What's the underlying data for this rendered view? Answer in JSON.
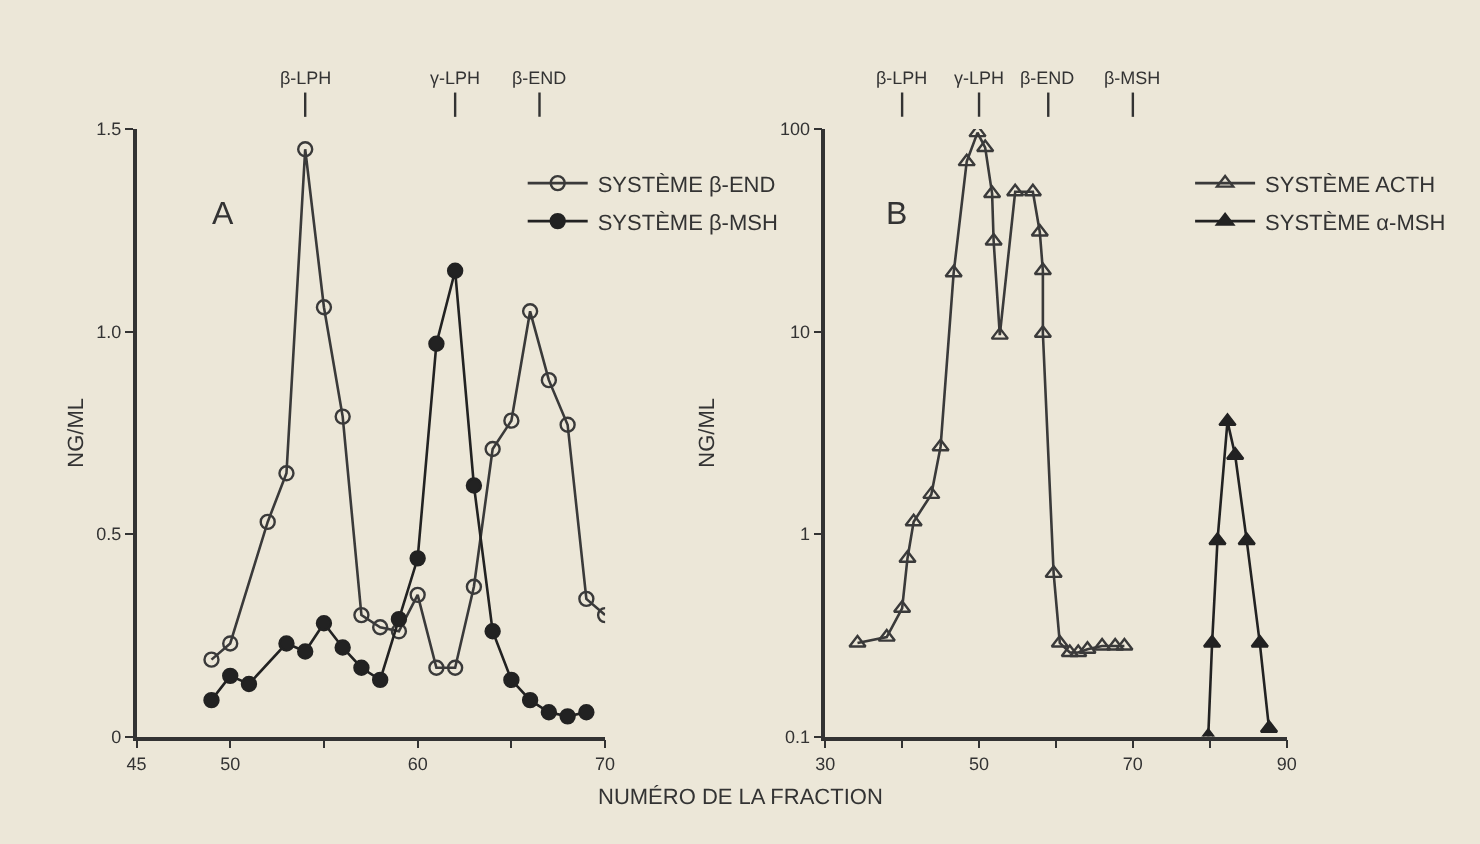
{
  "chart_data": [
    {
      "type": "line",
      "ylabel": "NG/ML",
      "xlabel": "NUMÉRO DE LA FRACTION",
      "xlim": [
        45,
        70
      ],
      "xticks": [
        45,
        50,
        {
          "value": 55,
          "label": null
        },
        60,
        {
          "value": 65,
          "label": null
        },
        70
      ],
      "ylim": [
        0,
        1.5
      ],
      "yticks": [
        0,
        0.5,
        {
          "value": 1,
          "label": "1.0"
        },
        1.5
      ],
      "grid": false,
      "legend": "top right",
      "line_style": "solid",
      "annotations": [
        "A"
      ],
      "ref_lines": [
        {
          "axis": "x",
          "value": 54,
          "label": "β-LPH"
        },
        {
          "axis": "x",
          "value": 62,
          "label": "γ-LPH"
        },
        {
          "axis": "x",
          "value": 66.5,
          "label": "β-END"
        }
      ],
      "series": [
        {
          "name": "SYSTÈME β-END",
          "color": "#3a3a3a",
          "marker": "circle-open",
          "x": [
            49,
            50,
            52,
            53,
            54,
            55,
            56,
            57,
            58,
            59,
            60,
            61,
            62,
            63,
            64,
            65,
            66,
            67,
            68,
            69,
            70
          ],
          "values": [
            0.19,
            0.23,
            0.53,
            0.65,
            1.45,
            1.06,
            0.79,
            0.3,
            0.27,
            0.26,
            0.35,
            0.17,
            0.17,
            0.37,
            0.71,
            0.78,
            1.05,
            0.88,
            0.77,
            0.34,
            0.3
          ]
        },
        {
          "name": "SYSTÈME β-MSH",
          "color": "#222222",
          "marker": "circle",
          "x": [
            49,
            50,
            51,
            53,
            54,
            55,
            56,
            57,
            58,
            59,
            60,
            61,
            62,
            63,
            64,
            65,
            66,
            67,
            68,
            69
          ],
          "values": [
            0.09,
            0.15,
            0.13,
            0.23,
            0.21,
            0.28,
            0.22,
            0.17,
            0.14,
            0.29,
            0.44,
            0.97,
            1.15,
            0.62,
            0.26,
            0.14,
            0.09,
            0.06,
            0.05,
            0.06
          ]
        }
      ]
    },
    {
      "type": "line",
      "ylabel": "NG/ML",
      "log": "y",
      "xlim": [
        30,
        90
      ],
      "xticks": [
        30,
        {
          "value": 40,
          "label": null
        },
        50,
        {
          "value": 60,
          "label": null
        },
        70,
        {
          "value": 80,
          "label": null
        },
        90
      ],
      "ylim": [
        0.1,
        100
      ],
      "yticks": [
        0.1,
        1,
        10,
        100
      ],
      "grid": false,
      "legend": "top right",
      "line_style": "solid",
      "annotations": [
        "B"
      ],
      "ref_lines": [
        {
          "axis": "x",
          "value": 40,
          "label": "β-LPH"
        },
        {
          "axis": "x",
          "value": 50,
          "label": "γ-LPH"
        },
        {
          "axis": "x",
          "value": 59,
          "label": "β-END"
        },
        {
          "axis": "x",
          "value": 70,
          "label": "β-MSH"
        }
      ],
      "series": [
        {
          "name": "SYSTÈME ACTH",
          "color": "#3a3a3a",
          "marker": "triangle-open",
          "x": [
            34.2,
            38,
            40,
            40.7,
            41.5,
            43.8,
            45,
            46.7,
            48.4,
            49.8,
            50.8,
            51.7,
            51.9,
            52.7,
            54.7,
            57,
            57.9,
            58.3,
            58.3,
            59.7,
            60.5,
            61.8,
            62.9,
            64.1,
            66,
            67.7,
            68.9
          ],
          "values": [
            0.29,
            0.31,
            0.43,
            0.76,
            1.15,
            1.57,
            2.7,
            19.5,
            69,
            96,
            81,
            48,
            28,
            9.6,
            49,
            49,
            31,
            20,
            9.8,
            0.64,
            0.29,
            0.26,
            0.26,
            0.27,
            0.28,
            0.28,
            0.28
          ]
        },
        {
          "name": "SYSTÈME α-MSH",
          "color": "#222222",
          "marker": "triangle",
          "x": [
            79.8,
            80.3,
            81,
            82.3,
            83.3,
            84.8,
            86.5,
            87.7
          ],
          "values": [
            0.1,
            0.29,
            0.93,
            3.6,
            2.45,
            0.93,
            0.29,
            0.11
          ]
        }
      ]
    }
  ]
}
